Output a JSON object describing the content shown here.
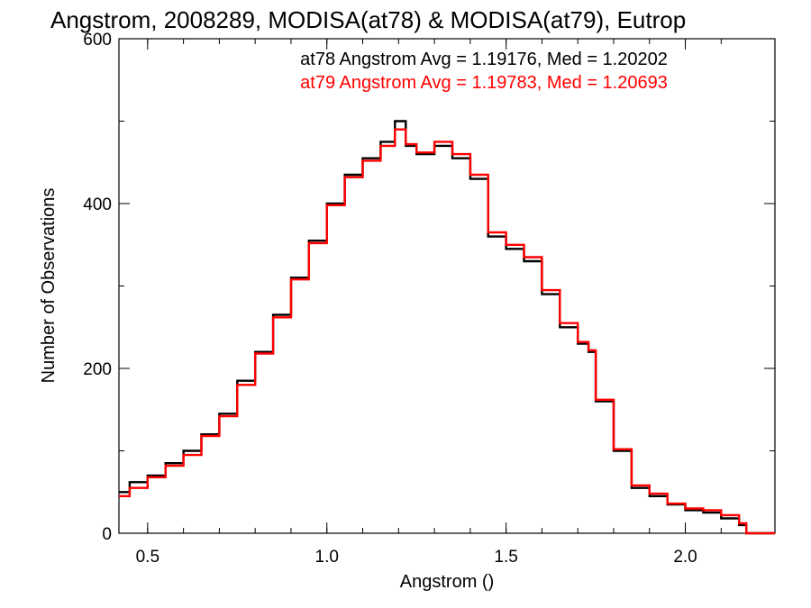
{
  "chart_data": {
    "type": "line",
    "title": "Angstrom, 2008289, MODISA(at78) & MODISA(at79), Eutrop",
    "xlabel": "Angstrom ()",
    "ylabel": "Number of Observations",
    "xlim": [
      0.42,
      2.25
    ],
    "ylim": [
      0,
      600
    ],
    "x_ticks": [
      0.5,
      1.0,
      1.5,
      2.0
    ],
    "x_tick_labels": [
      "0.5",
      "1.0",
      "1.5",
      "2.0"
    ],
    "y_ticks": [
      0,
      200,
      400,
      600
    ],
    "y_tick_labels": [
      "0",
      "200",
      "400",
      "600"
    ],
    "grid": false,
    "legend_placement": "top-center",
    "legend": [
      "at78 Angstrom Avg = 1.19176, Med = 1.20202",
      "at79 Angstrom Avg = 1.19783, Med = 1.20693"
    ],
    "series": [
      {
        "color": "#000000",
        "x": [
          0.42,
          0.45,
          0.5,
          0.55,
          0.6,
          0.65,
          0.7,
          0.75,
          0.8,
          0.85,
          0.9,
          0.95,
          1.0,
          1.05,
          1.1,
          1.15,
          1.19,
          1.22,
          1.25,
          1.3,
          1.35,
          1.4,
          1.45,
          1.5,
          1.55,
          1.6,
          1.65,
          1.7,
          1.73,
          1.75,
          1.8,
          1.85,
          1.9,
          1.95,
          2.0,
          2.05,
          2.1,
          2.15,
          2.17,
          2.25
        ],
        "y": [
          50,
          62,
          70,
          85,
          100,
          120,
          145,
          185,
          220,
          265,
          310,
          355,
          400,
          435,
          455,
          475,
          500,
          470,
          460,
          470,
          455,
          430,
          360,
          345,
          330,
          290,
          250,
          230,
          220,
          160,
          100,
          55,
          45,
          35,
          28,
          25,
          18,
          10,
          0,
          0
        ]
      },
      {
        "color": "#ff0000",
        "x": [
          0.42,
          0.45,
          0.5,
          0.55,
          0.6,
          0.65,
          0.7,
          0.75,
          0.8,
          0.85,
          0.9,
          0.95,
          1.0,
          1.05,
          1.1,
          1.15,
          1.19,
          1.22,
          1.25,
          1.3,
          1.35,
          1.4,
          1.45,
          1.5,
          1.55,
          1.6,
          1.65,
          1.7,
          1.73,
          1.75,
          1.8,
          1.85,
          1.9,
          1.95,
          2.0,
          2.05,
          2.1,
          2.15,
          2.17,
          2.25
        ],
        "y": [
          45,
          55,
          68,
          82,
          95,
          118,
          142,
          180,
          218,
          262,
          308,
          352,
          398,
          432,
          452,
          470,
          490,
          472,
          462,
          475,
          460,
          435,
          365,
          350,
          335,
          295,
          255,
          232,
          222,
          162,
          102,
          58,
          48,
          36,
          30,
          28,
          22,
          12,
          0,
          0
        ]
      }
    ]
  }
}
